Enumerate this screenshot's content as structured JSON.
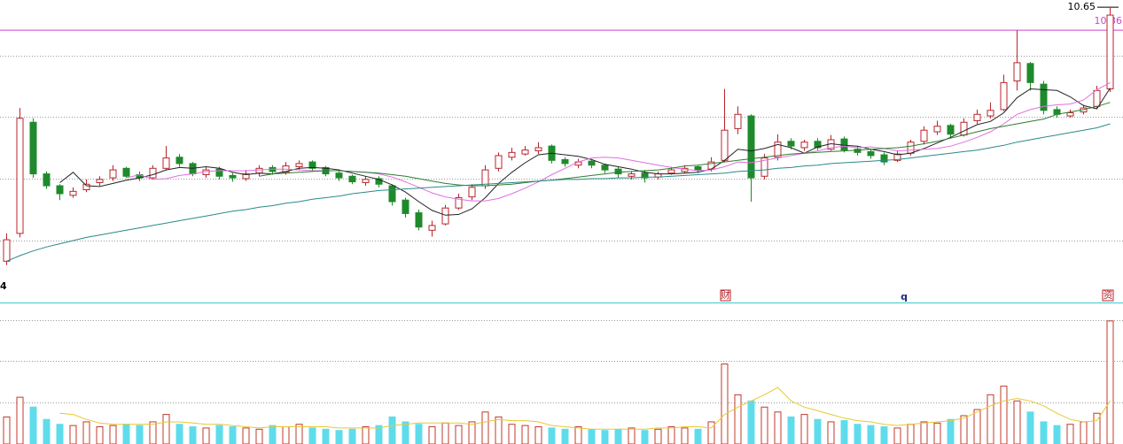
{
  "chart_data": [
    {
      "type": "candlestick",
      "open": [
        7.45,
        7.8,
        9.2,
        8.55,
        8.4,
        8.28,
        8.35,
        8.44,
        8.5,
        8.62,
        8.54,
        8.5,
        8.62,
        8.76,
        8.68,
        8.54,
        8.61,
        8.53,
        8.49,
        8.56,
        8.63,
        8.57,
        8.64,
        8.7,
        8.63,
        8.56,
        8.52,
        8.44,
        8.49,
        8.4,
        8.22,
        8.06,
        7.84,
        7.92,
        8.12,
        8.26,
        8.4,
        8.62,
        8.76,
        8.8,
        8.84,
        8.9,
        8.73,
        8.66,
        8.71,
        8.66,
        8.61,
        8.52,
        8.56,
        8.51,
        8.56,
        8.58,
        8.64,
        8.61,
        8.72,
        9.12,
        9.28,
        8.52,
        8.76,
        8.96,
        8.88,
        8.96,
        8.86,
        8.99,
        8.86,
        8.83,
        8.79,
        8.72,
        8.81,
        8.96,
        9.08,
        9.16,
        9.04,
        9.22,
        9.28,
        9.36,
        9.72,
        9.94,
        9.68,
        9.36,
        9.28,
        9.33,
        9.4,
        9.62
      ],
      "high": [
        7.8,
        9.38,
        9.25,
        8.58,
        8.42,
        8.38,
        8.48,
        8.52,
        8.66,
        8.64,
        8.58,
        8.66,
        8.9,
        8.8,
        8.7,
        8.64,
        8.64,
        8.56,
        8.6,
        8.66,
        8.66,
        8.7,
        8.72,
        8.72,
        8.65,
        8.58,
        8.54,
        8.52,
        8.52,
        8.42,
        8.25,
        8.1,
        7.96,
        8.16,
        8.3,
        8.42,
        8.66,
        8.82,
        8.88,
        8.9,
        8.95,
        8.92,
        8.76,
        8.74,
        8.73,
        8.68,
        8.64,
        8.58,
        8.6,
        8.58,
        8.64,
        8.66,
        8.66,
        8.76,
        9.62,
        9.4,
        9.3,
        8.8,
        9.05,
        9.0,
        8.98,
        9.0,
        9.04,
        9.02,
        8.9,
        8.86,
        8.82,
        8.84,
        8.98,
        9.15,
        9.22,
        9.18,
        9.25,
        9.36,
        9.45,
        9.8,
        10.36,
        9.96,
        9.72,
        9.4,
        9.36,
        9.42,
        9.66,
        10.65
      ],
      "low": [
        7.4,
        7.75,
        8.5,
        8.36,
        8.22,
        8.25,
        8.32,
        8.4,
        8.46,
        8.5,
        8.46,
        8.48,
        8.6,
        8.64,
        8.52,
        8.5,
        8.48,
        8.45,
        8.46,
        8.52,
        8.54,
        8.54,
        8.6,
        8.58,
        8.52,
        8.46,
        8.42,
        8.4,
        8.38,
        8.15,
        8.0,
        7.84,
        7.76,
        7.9,
        8.1,
        8.22,
        8.36,
        8.58,
        8.72,
        8.78,
        8.8,
        8.68,
        8.64,
        8.62,
        8.62,
        8.56,
        8.5,
        8.48,
        8.44,
        8.48,
        8.54,
        8.56,
        8.56,
        8.58,
        8.7,
        9.05,
        8.2,
        8.48,
        8.72,
        8.86,
        8.84,
        8.85,
        8.84,
        8.82,
        8.78,
        8.74,
        8.66,
        8.7,
        8.78,
        8.92,
        9.04,
        9.0,
        9.02,
        9.18,
        9.25,
        9.34,
        9.6,
        9.6,
        9.3,
        9.26,
        9.26,
        9.3,
        9.38,
        9.58
      ],
      "close": [
        7.72,
        9.25,
        8.55,
        8.4,
        8.3,
        8.33,
        8.42,
        8.48,
        8.6,
        8.52,
        8.5,
        8.62,
        8.75,
        8.68,
        8.55,
        8.6,
        8.52,
        8.5,
        8.55,
        8.62,
        8.58,
        8.65,
        8.68,
        8.62,
        8.55,
        8.5,
        8.45,
        8.48,
        8.42,
        8.2,
        8.05,
        7.88,
        7.9,
        8.12,
        8.25,
        8.38,
        8.6,
        8.78,
        8.82,
        8.85,
        8.88,
        8.72,
        8.68,
        8.7,
        8.66,
        8.6,
        8.55,
        8.55,
        8.5,
        8.55,
        8.6,
        8.62,
        8.6,
        8.7,
        9.1,
        9.3,
        8.5,
        8.75,
        8.95,
        8.9,
        8.95,
        8.88,
        8.98,
        8.85,
        8.82,
        8.78,
        8.7,
        8.8,
        8.95,
        9.1,
        9.15,
        9.05,
        9.2,
        9.3,
        9.35,
        9.7,
        9.95,
        9.7,
        9.35,
        9.3,
        9.32,
        9.38,
        9.6,
        10.55
      ],
      "up_color": "#b8262b",
      "down_color": "#1f8a2c",
      "moving_averages": [
        {
          "color": "#222222",
          "values": [
            null,
            null,
            null,
            null,
            8.44,
            8.57,
            8.4,
            8.39,
            8.43,
            8.47,
            8.5,
            8.54,
            8.6,
            8.63,
            8.62,
            8.64,
            8.62,
            8.57,
            8.54,
            8.56,
            8.55,
            8.58,
            8.62,
            8.63,
            8.62,
            8.6,
            8.56,
            8.52,
            8.48,
            8.41,
            8.32,
            8.2,
            8.09,
            8.03,
            8.04,
            8.11,
            8.25,
            8.43,
            8.57,
            8.69,
            8.79,
            8.81,
            8.79,
            8.77,
            8.73,
            8.67,
            8.64,
            8.61,
            8.57,
            8.55,
            8.55,
            8.56,
            8.57,
            8.61,
            8.72,
            8.86,
            8.84,
            8.87,
            8.92,
            8.88,
            8.81,
            8.89,
            8.93,
            8.91,
            8.9,
            8.86,
            8.83,
            8.79,
            8.81,
            8.87,
            8.94,
            9.01,
            9.09,
            9.17,
            9.21,
            9.32,
            9.51,
            9.62,
            9.61,
            9.6,
            9.52,
            9.41,
            9.37,
            9.63
          ]
        },
        {
          "color": "#e070e0",
          "values": [
            null,
            null,
            null,
            null,
            null,
            null,
            null,
            null,
            null,
            8.5,
            8.54,
            8.48,
            8.49,
            8.53,
            8.55,
            8.58,
            8.59,
            8.59,
            8.59,
            8.6,
            8.61,
            8.61,
            8.6,
            8.59,
            8.59,
            8.59,
            8.58,
            8.57,
            8.55,
            8.51,
            8.45,
            8.38,
            8.31,
            8.26,
            8.23,
            8.21,
            8.21,
            8.24,
            8.3,
            8.37,
            8.45,
            8.54,
            8.62,
            8.7,
            8.75,
            8.76,
            8.75,
            8.72,
            8.69,
            8.66,
            8.63,
            8.61,
            8.59,
            8.6,
            8.64,
            8.7,
            8.69,
            8.72,
            8.75,
            8.78,
            8.81,
            8.84,
            8.88,
            8.9,
            8.88,
            8.89,
            8.87,
            8.84,
            8.85,
            8.86,
            8.87,
            8.9,
            8.95,
            9.01,
            9.08,
            9.18,
            9.3,
            9.36,
            9.4,
            9.42,
            9.43,
            9.48,
            9.61,
            9.7
          ]
        },
        {
          "color": "#2e7d32",
          "values": [
            null,
            null,
            null,
            null,
            null,
            null,
            null,
            null,
            null,
            null,
            null,
            null,
            null,
            null,
            null,
            null,
            null,
            null,
            null,
            8.52,
            8.55,
            8.56,
            8.57,
            8.58,
            8.59,
            8.59,
            8.58,
            8.57,
            8.56,
            8.54,
            8.52,
            8.49,
            8.46,
            8.43,
            8.41,
            8.4,
            8.4,
            8.41,
            8.42,
            8.44,
            8.46,
            8.47,
            8.49,
            8.51,
            8.53,
            8.55,
            8.57,
            8.58,
            8.59,
            8.6,
            8.62,
            8.65,
            8.66,
            8.68,
            8.7,
            8.72,
            8.74,
            8.76,
            8.78,
            8.8,
            8.81,
            8.82,
            8.83,
            8.84,
            8.85,
            8.86,
            8.87,
            8.88,
            8.9,
            8.93,
            8.96,
            9.0,
            9.04,
            9.08,
            9.12,
            9.15,
            9.18,
            9.21,
            9.24,
            9.3,
            9.33,
            9.36,
            9.4,
            9.45
          ]
        },
        {
          "color": "#2a8a8a",
          "values": [
            7.45,
            7.52,
            7.58,
            7.63,
            7.67,
            7.71,
            7.75,
            7.78,
            7.81,
            7.84,
            7.87,
            7.9,
            7.93,
            7.96,
            7.99,
            8.02,
            8.05,
            8.08,
            8.1,
            8.13,
            8.15,
            8.18,
            8.2,
            8.23,
            8.25,
            8.27,
            8.3,
            8.32,
            8.34,
            8.35,
            8.36,
            8.37,
            8.38,
            8.39,
            8.4,
            8.41,
            8.42,
            8.43,
            8.44,
            8.45,
            8.46,
            8.47,
            8.48,
            8.48,
            8.49,
            8.49,
            8.5,
            8.5,
            8.51,
            8.51,
            8.52,
            8.53,
            8.54,
            8.55,
            8.56,
            8.58,
            8.59,
            8.6,
            8.62,
            8.63,
            8.65,
            8.66,
            8.68,
            8.69,
            8.7,
            8.71,
            8.72,
            8.73,
            8.75,
            8.77,
            8.79,
            8.81,
            8.83,
            8.85,
            8.88,
            8.91,
            8.95,
            8.98,
            9.01,
            9.04,
            9.07,
            9.1,
            9.13,
            9.18
          ]
        }
      ],
      "ylim": [
        6.93,
        10.74
      ],
      "yticks": [
        10.65
      ],
      "reference_line": {
        "value": 10.36,
        "color": "#cc44cc"
      },
      "annotations": [
        "4",
        "财",
        "q",
        "资"
      ]
    },
    {
      "type": "bar",
      "values": [
        22,
        38,
        30,
        20,
        16,
        15,
        18,
        14,
        15,
        16,
        15,
        18,
        24,
        16,
        14,
        13,
        15,
        14,
        13,
        12,
        15,
        14,
        16,
        13,
        12,
        11,
        12,
        14,
        15,
        22,
        18,
        16,
        14,
        17,
        15,
        18,
        26,
        22,
        16,
        15,
        14,
        13,
        12,
        14,
        12,
        11,
        12,
        13,
        11,
        12,
        14,
        13,
        12,
        18,
        65,
        40,
        35,
        30,
        26,
        22,
        24,
        20,
        18,
        19,
        16,
        15,
        14,
        13,
        16,
        18,
        17,
        20,
        23,
        28,
        40,
        47,
        35,
        26,
        18,
        15,
        16,
        18,
        25,
        100
      ],
      "up_color": "#c0392b",
      "down_color": "#5fdcec",
      "moving_average": {
        "color": "#e8c830",
        "values": [
          null,
          null,
          null,
          null,
          25,
          24,
          20,
          17,
          16,
          16,
          16,
          16,
          18,
          18,
          17,
          16,
          16,
          15,
          14,
          13,
          14,
          14,
          14,
          14,
          14,
          13,
          13,
          13,
          13,
          15,
          16,
          17,
          17,
          17,
          17,
          16,
          18,
          20,
          19,
          19,
          18,
          15,
          14,
          13,
          12,
          12,
          12,
          12,
          12,
          13,
          13,
          14,
          14,
          13,
          24,
          30,
          35,
          40,
          46,
          35,
          30,
          27,
          24,
          21,
          19,
          18,
          16,
          15,
          16,
          17,
          18,
          19,
          21,
          26,
          31,
          35,
          37,
          35,
          31,
          25,
          20,
          18,
          19,
          35
        ]
      },
      "ylim": [
        0,
        115
      ]
    }
  ]
}
